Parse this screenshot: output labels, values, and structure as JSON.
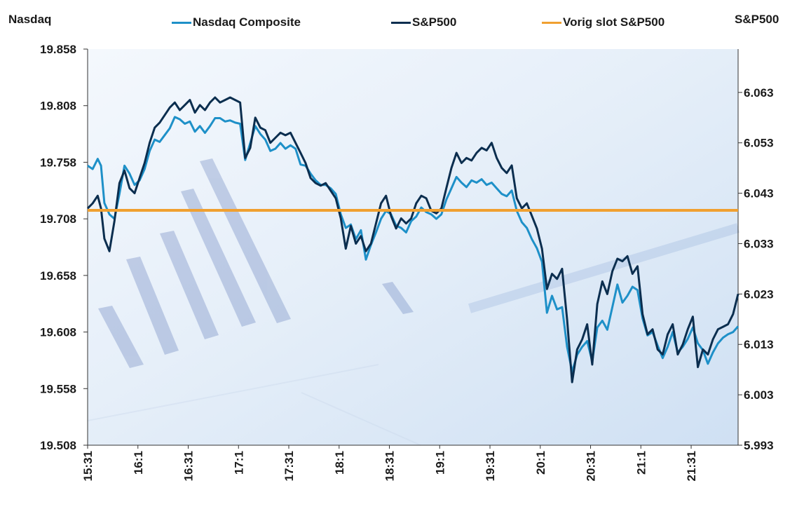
{
  "chart_data": {
    "type": "line",
    "left_axis_title": "Nasdaq",
    "right_axis_title": "S&P500",
    "left_ticks": [
      "19.858",
      "19.808",
      "19.758",
      "19.708",
      "19.658",
      "19.608",
      "19.558",
      "19.508"
    ],
    "left_ylim": [
      19508,
      19858
    ],
    "right_ticks": [
      "6.063",
      "6.053",
      "6.043",
      "6.033",
      "6.023",
      "6.013",
      "6.003",
      "5.993"
    ],
    "right_ylim": [
      5993,
      6071.6
    ],
    "x_tick_labels": [
      "15:31",
      "16:1",
      "16:31",
      "17:1",
      "17:31",
      "18:1",
      "18:31",
      "19:1",
      "19:31",
      "20:1",
      "20:31",
      "21:1",
      "21:31"
    ],
    "x_range": [
      "15:31",
      "21:59"
    ],
    "grid": false,
    "legend_position": "top",
    "series": [
      {
        "name": "Nasdaq Composite",
        "axis": "left",
        "color": "#1e90c8",
        "values": [
          [
            "15:31",
            19755
          ],
          [
            "15:34",
            19752
          ],
          [
            "15:37",
            19761
          ],
          [
            "15:39",
            19755
          ],
          [
            "15:41",
            19722
          ],
          [
            "15:44",
            19712
          ],
          [
            "15:47",
            19708
          ],
          [
            "15:50",
            19730
          ],
          [
            "15:53",
            19755
          ],
          [
            "15:56",
            19748
          ],
          [
            "15:59",
            19738
          ],
          [
            "16:02",
            19742
          ],
          [
            "16:05",
            19752
          ],
          [
            "16:08",
            19768
          ],
          [
            "16:11",
            19778
          ],
          [
            "16:14",
            19776
          ],
          [
            "16:17",
            19782
          ],
          [
            "16:20",
            19788
          ],
          [
            "16:23",
            19798
          ],
          [
            "16:26",
            19796
          ],
          [
            "16:29",
            19792
          ],
          [
            "16:32",
            19794
          ],
          [
            "16:35",
            19785
          ],
          [
            "16:38",
            19790
          ],
          [
            "16:41",
            19784
          ],
          [
            "16:44",
            19790
          ],
          [
            "16:47",
            19797
          ],
          [
            "16:50",
            19797
          ],
          [
            "16:53",
            19794
          ],
          [
            "16:56",
            19795
          ],
          [
            "16:59",
            19793
          ],
          [
            "17:02",
            19792
          ],
          [
            "17:05",
            19760
          ],
          [
            "17:08",
            19775
          ],
          [
            "17:11",
            19790
          ],
          [
            "17:14",
            19783
          ],
          [
            "17:17",
            19778
          ],
          [
            "17:20",
            19768
          ],
          [
            "17:23",
            19770
          ],
          [
            "17:26",
            19775
          ],
          [
            "17:29",
            19770
          ],
          [
            "17:32",
            19773
          ],
          [
            "17:35",
            19770
          ],
          [
            "17:38",
            19756
          ],
          [
            "17:41",
            19755
          ],
          [
            "17:44",
            19748
          ],
          [
            "17:47",
            19742
          ],
          [
            "17:50",
            19738
          ],
          [
            "17:53",
            19738
          ],
          [
            "17:56",
            19735
          ],
          [
            "17:59",
            19730
          ],
          [
            "18:02",
            19712
          ],
          [
            "18:05",
            19700
          ],
          [
            "18:08",
            19703
          ],
          [
            "18:11",
            19690
          ],
          [
            "18:14",
            19698
          ],
          [
            "18:17",
            19672
          ],
          [
            "18:20",
            19685
          ],
          [
            "18:23",
            19696
          ],
          [
            "18:26",
            19708
          ],
          [
            "18:29",
            19715
          ],
          [
            "18:32",
            19712
          ],
          [
            "18:35",
            19702
          ],
          [
            "18:38",
            19700
          ],
          [
            "18:41",
            19696
          ],
          [
            "18:44",
            19706
          ],
          [
            "18:47",
            19710
          ],
          [
            "18:50",
            19718
          ],
          [
            "18:53",
            19714
          ],
          [
            "18:56",
            19712
          ],
          [
            "18:59",
            19708
          ],
          [
            "19:02",
            19712
          ],
          [
            "19:05",
            19725
          ],
          [
            "19:08",
            19735
          ],
          [
            "19:11",
            19745
          ],
          [
            "19:14",
            19740
          ],
          [
            "19:17",
            19736
          ],
          [
            "19:20",
            19742
          ],
          [
            "19:23",
            19740
          ],
          [
            "19:26",
            19743
          ],
          [
            "19:29",
            19738
          ],
          [
            "19:32",
            19740
          ],
          [
            "19:35",
            19735
          ],
          [
            "19:38",
            19730
          ],
          [
            "19:41",
            19728
          ],
          [
            "19:44",
            19733
          ],
          [
            "19:47",
            19715
          ],
          [
            "19:50",
            19705
          ],
          [
            "19:53",
            19700
          ],
          [
            "19:56",
            19690
          ],
          [
            "19:59",
            19682
          ],
          [
            "20:02",
            19670
          ],
          [
            "20:05",
            19625
          ],
          [
            "20:08",
            19640
          ],
          [
            "20:11",
            19628
          ],
          [
            "20:14",
            19630
          ],
          [
            "20:17",
            19595
          ],
          [
            "20:20",
            19573
          ],
          [
            "20:23",
            19588
          ],
          [
            "20:26",
            19595
          ],
          [
            "20:29",
            19600
          ],
          [
            "20:32",
            19582
          ],
          [
            "20:35",
            19612
          ],
          [
            "20:38",
            19618
          ],
          [
            "20:41",
            19610
          ],
          [
            "20:44",
            19630
          ],
          [
            "20:47",
            19650
          ],
          [
            "20:50",
            19634
          ],
          [
            "20:53",
            19640
          ],
          [
            "20:56",
            19648
          ],
          [
            "20:59",
            19645
          ],
          [
            "21:02",
            19620
          ],
          [
            "21:05",
            19605
          ],
          [
            "21:08",
            19608
          ],
          [
            "21:11",
            19596
          ],
          [
            "21:14",
            19585
          ],
          [
            "21:17",
            19595
          ],
          [
            "21:20",
            19608
          ],
          [
            "21:23",
            19590
          ],
          [
            "21:26",
            19595
          ],
          [
            "21:29",
            19602
          ],
          [
            "21:32",
            19612
          ],
          [
            "21:35",
            19598
          ],
          [
            "21:38",
            19592
          ],
          [
            "21:41",
            19580
          ],
          [
            "21:44",
            19590
          ],
          [
            "21:47",
            19598
          ],
          [
            "21:50",
            19603
          ],
          [
            "21:53",
            19606
          ],
          [
            "21:56",
            19608
          ],
          [
            "21:59",
            19613
          ]
        ]
      },
      {
        "name": "S&P500",
        "axis": "right",
        "color": "#0b2e4f",
        "values": [
          [
            "15:31",
            6040.0
          ],
          [
            "15:34",
            6041.0
          ],
          [
            "15:37",
            6042.5
          ],
          [
            "15:39",
            6040.0
          ],
          [
            "15:41",
            6034.0
          ],
          [
            "15:44",
            6031.5
          ],
          [
            "15:47",
            6037.5
          ],
          [
            "15:50",
            6045.0
          ],
          [
            "15:53",
            6047.5
          ],
          [
            "15:56",
            6044.0
          ],
          [
            "15:59",
            6043.0
          ],
          [
            "16:02",
            6046.0
          ],
          [
            "16:05",
            6049.0
          ],
          [
            "16:08",
            6053.0
          ],
          [
            "16:11",
            6056.0
          ],
          [
            "16:14",
            6057.0
          ],
          [
            "16:17",
            6058.5
          ],
          [
            "16:20",
            6060.0
          ],
          [
            "16:23",
            6061.0
          ],
          [
            "16:26",
            6059.5
          ],
          [
            "16:29",
            6060.5
          ],
          [
            "16:32",
            6061.5
          ],
          [
            "16:35",
            6059.0
          ],
          [
            "16:38",
            6060.5
          ],
          [
            "16:41",
            6059.5
          ],
          [
            "16:44",
            6061.0
          ],
          [
            "16:47",
            6062.0
          ],
          [
            "16:50",
            6061.0
          ],
          [
            "16:53",
            6061.5
          ],
          [
            "16:56",
            6062.0
          ],
          [
            "16:59",
            6061.5
          ],
          [
            "17:02",
            6061.0
          ],
          [
            "17:05",
            6050.0
          ],
          [
            "17:08",
            6052.0
          ],
          [
            "17:11",
            6058.0
          ],
          [
            "17:14",
            6056.0
          ],
          [
            "17:17",
            6055.5
          ],
          [
            "17:20",
            6053.0
          ],
          [
            "17:23",
            6054.0
          ],
          [
            "17:26",
            6055.0
          ],
          [
            "17:29",
            6054.5
          ],
          [
            "17:32",
            6055.0
          ],
          [
            "17:35",
            6053.0
          ],
          [
            "17:38",
            6051.0
          ],
          [
            "17:41",
            6049.0
          ],
          [
            "17:44",
            6046.0
          ],
          [
            "17:47",
            6045.0
          ],
          [
            "17:50",
            6044.5
          ],
          [
            "17:53",
            6045.0
          ],
          [
            "17:56",
            6043.5
          ],
          [
            "17:59",
            6042.0
          ],
          [
            "18:02",
            6038.0
          ],
          [
            "18:05",
            6032.0
          ],
          [
            "18:08",
            6036.5
          ],
          [
            "18:11",
            6033.0
          ],
          [
            "18:14",
            6034.5
          ],
          [
            "18:17",
            6031.5
          ],
          [
            "18:20",
            6033.0
          ],
          [
            "18:23",
            6037.0
          ],
          [
            "18:26",
            6041.0
          ],
          [
            "18:29",
            6042.5
          ],
          [
            "18:32",
            6038.5
          ],
          [
            "18:35",
            6036.0
          ],
          [
            "18:38",
            6038.0
          ],
          [
            "18:41",
            6037.0
          ],
          [
            "18:44",
            6038.0
          ],
          [
            "18:47",
            6041.0
          ],
          [
            "18:50",
            6042.5
          ],
          [
            "18:53",
            6042.0
          ],
          [
            "18:56",
            6039.5
          ],
          [
            "18:59",
            6039.0
          ],
          [
            "19:02",
            6040.0
          ],
          [
            "19:05",
            6044.0
          ],
          [
            "19:08",
            6048.0
          ],
          [
            "19:11",
            6051.0
          ],
          [
            "19:14",
            6049.0
          ],
          [
            "19:17",
            6050.0
          ],
          [
            "19:20",
            6049.5
          ],
          [
            "19:23",
            6051.0
          ],
          [
            "19:26",
            6052.0
          ],
          [
            "19:29",
            6051.5
          ],
          [
            "19:32",
            6053.0
          ],
          [
            "19:35",
            6050.0
          ],
          [
            "19:38",
            6048.0
          ],
          [
            "19:41",
            6047.0
          ],
          [
            "19:44",
            6048.5
          ],
          [
            "19:47",
            6042.0
          ],
          [
            "19:50",
            6040.0
          ],
          [
            "19:53",
            6041.0
          ],
          [
            "19:56",
            6038.5
          ],
          [
            "19:59",
            6036.0
          ],
          [
            "20:02",
            6032.0
          ],
          [
            "20:05",
            6024.0
          ],
          [
            "20:08",
            6027.0
          ],
          [
            "20:11",
            6026.0
          ],
          [
            "20:14",
            6028.0
          ],
          [
            "20:17",
            6018.0
          ],
          [
            "20:20",
            6005.5
          ],
          [
            "20:23",
            6012.0
          ],
          [
            "20:26",
            6014.0
          ],
          [
            "20:29",
            6017.0
          ],
          [
            "20:32",
            6009.0
          ],
          [
            "20:35",
            6021.0
          ],
          [
            "20:38",
            6025.5
          ],
          [
            "20:41",
            6023.0
          ],
          [
            "20:44",
            6027.5
          ],
          [
            "20:47",
            6030.0
          ],
          [
            "20:50",
            6029.5
          ],
          [
            "20:53",
            6030.5
          ],
          [
            "20:56",
            6027.0
          ],
          [
            "20:59",
            6028.5
          ],
          [
            "21:02",
            6019.0
          ],
          [
            "21:05",
            6015.0
          ],
          [
            "21:08",
            6016.0
          ],
          [
            "21:11",
            6012.0
          ],
          [
            "21:14",
            6011.0
          ],
          [
            "21:17",
            6015.0
          ],
          [
            "21:20",
            6017.0
          ],
          [
            "21:23",
            6011.0
          ],
          [
            "21:26",
            6013.0
          ],
          [
            "21:29",
            6016.0
          ],
          [
            "21:32",
            6018.5
          ],
          [
            "21:35",
            6008.5
          ],
          [
            "21:38",
            6012.0
          ],
          [
            "21:41",
            6011.0
          ],
          [
            "21:44",
            6014.0
          ],
          [
            "21:47",
            6016.0
          ],
          [
            "21:50",
            6016.5
          ],
          [
            "21:53",
            6017.0
          ],
          [
            "21:56",
            6019.0
          ],
          [
            "21:59",
            6023.0
          ]
        ]
      },
      {
        "name": "Vorig slot S&P500",
        "axis": "right",
        "color": "#f0a030",
        "constant": 6039.6
      }
    ]
  }
}
